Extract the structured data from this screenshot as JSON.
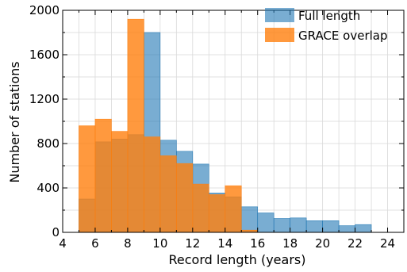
{
  "chart_data": {
    "type": "bar",
    "subtype": "overlapping-histogram",
    "xlabel": "Record length (years)",
    "ylabel": "Number of stations",
    "xlim": [
      4,
      25
    ],
    "ylim": [
      0,
      2000
    ],
    "x_ticks": [
      4,
      6,
      8,
      10,
      12,
      14,
      16,
      18,
      20,
      22,
      24
    ],
    "y_ticks": [
      0,
      400,
      800,
      1200,
      1600,
      2000
    ],
    "grid": true,
    "legend_position": "top-right",
    "bin_width": 1,
    "series": [
      {
        "name": "Full length",
        "color": "#1f77b4",
        "opacity": 0.6,
        "bin_starts": [
          5,
          6,
          7,
          8,
          9,
          10,
          11,
          12,
          13,
          14,
          15,
          16,
          17,
          18,
          19,
          20,
          21,
          22
        ],
        "values": [
          300,
          815,
          840,
          880,
          1800,
          830,
          730,
          615,
          355,
          320,
          230,
          175,
          125,
          130,
          105,
          105,
          60,
          70
        ]
      },
      {
        "name": "GRACE overlap",
        "color": "#ff7f0e",
        "opacity": 0.8,
        "bin_starts": [
          5,
          6,
          7,
          8,
          9,
          10,
          11,
          12,
          13,
          14,
          15
        ],
        "values": [
          960,
          1020,
          910,
          1920,
          860,
          690,
          620,
          435,
          340,
          420,
          20
        ]
      }
    ]
  }
}
